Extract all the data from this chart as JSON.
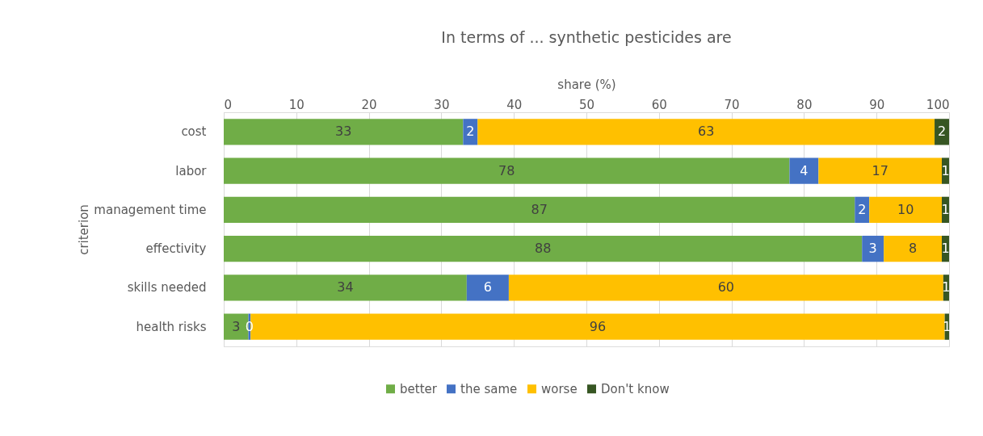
{
  "chart_data": {
    "type": "bar",
    "orientation": "horizontal",
    "stacked": true,
    "title": "In terms of ... synthetic pesticides are",
    "xlabel": "share (%)",
    "ylabel": "criterion",
    "categories": [
      "cost",
      "labor",
      "management time",
      "effectivity",
      "skills needed",
      "health risks"
    ],
    "series": [
      {
        "name": "better",
        "color": "#70ad47",
        "values": [
          33,
          78,
          87,
          88,
          33.5,
          3.4
        ],
        "value_labels": [
          "33",
          "78",
          "87",
          "88",
          "34",
          "3"
        ]
      },
      {
        "name": "the same",
        "color": "#4472c4",
        "values": [
          2,
          4,
          2,
          3,
          5.8,
          0.3
        ],
        "value_labels": [
          "2",
          "4",
          "2",
          "3",
          "6",
          "0"
        ]
      },
      {
        "name": "worse",
        "color": "#ffc000",
        "values": [
          63,
          17,
          10,
          8,
          59.9,
          95.7
        ],
        "value_labels": [
          "63",
          "17",
          "10",
          "8",
          "60",
          "96"
        ]
      },
      {
        "name": "Don't know",
        "color": "#375623",
        "values": [
          2,
          1,
          1,
          1,
          0.8,
          0.6
        ],
        "value_labels": [
          "2",
          "1",
          "1",
          "1",
          "1",
          "1"
        ]
      }
    ],
    "xlim": [
      0,
      100
    ],
    "xticks": [
      0,
      10,
      20,
      30,
      40,
      50,
      60,
      70,
      80,
      90,
      100
    ],
    "grid": "x",
    "legend": "bottom"
  }
}
